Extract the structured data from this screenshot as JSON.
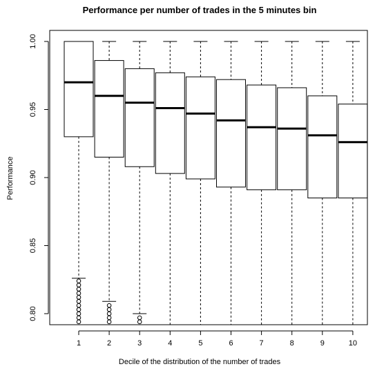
{
  "chart_data": {
    "type": "box",
    "title": "Performance per number of trades in the 5 minutes bin",
    "xlabel": "Decile of the distribution of the number of trades",
    "ylabel": "Performance",
    "ylim": [
      0.79,
      1.0
    ],
    "y_ticks": [
      "0.80",
      "0.85",
      "0.90",
      "0.95",
      "1.00"
    ],
    "grid": false,
    "categories": [
      "1",
      "2",
      "3",
      "4",
      "5",
      "6",
      "7",
      "8",
      "9",
      "10"
    ],
    "boxes": [
      {
        "category": "1",
        "lower_whisker": 0.826,
        "q1": 0.93,
        "median": 0.97,
        "q3": 1.0,
        "upper_whisker": 1.0,
        "outliers": [
          0.794,
          0.797,
          0.8,
          0.803,
          0.806,
          0.809,
          0.812,
          0.815,
          0.818,
          0.821,
          0.824
        ]
      },
      {
        "category": "2",
        "lower_whisker": 0.809,
        "q1": 0.915,
        "median": 0.96,
        "q3": 0.986,
        "upper_whisker": 1.0,
        "outliers": [
          0.794,
          0.797,
          0.8,
          0.803,
          0.806
        ]
      },
      {
        "category": "3",
        "lower_whisker": 0.8,
        "q1": 0.908,
        "median": 0.955,
        "q3": 0.98,
        "upper_whisker": 1.0,
        "outliers": [
          0.794,
          0.797
        ]
      },
      {
        "category": "4",
        "lower_whisker": 0.791,
        "q1": 0.903,
        "median": 0.951,
        "q3": 0.977,
        "upper_whisker": 1.0,
        "outliers": []
      },
      {
        "category": "5",
        "lower_whisker": 0.79,
        "q1": 0.899,
        "median": 0.947,
        "q3": 0.974,
        "upper_whisker": 1.0,
        "outliers": []
      },
      {
        "category": "6",
        "lower_whisker": 0.79,
        "q1": 0.893,
        "median": 0.942,
        "q3": 0.972,
        "upper_whisker": 1.0,
        "outliers": []
      },
      {
        "category": "7",
        "lower_whisker": 0.79,
        "q1": 0.891,
        "median": 0.937,
        "q3": 0.968,
        "upper_whisker": 1.0,
        "outliers": []
      },
      {
        "category": "8",
        "lower_whisker": 0.79,
        "q1": 0.891,
        "median": 0.936,
        "q3": 0.966,
        "upper_whisker": 1.0,
        "outliers": []
      },
      {
        "category": "9",
        "lower_whisker": 0.79,
        "q1": 0.885,
        "median": 0.931,
        "q3": 0.96,
        "upper_whisker": 1.0,
        "outliers": []
      },
      {
        "category": "10",
        "lower_whisker": 0.79,
        "q1": 0.885,
        "median": 0.926,
        "q3": 0.954,
        "upper_whisker": 1.0,
        "outliers": []
      }
    ]
  }
}
